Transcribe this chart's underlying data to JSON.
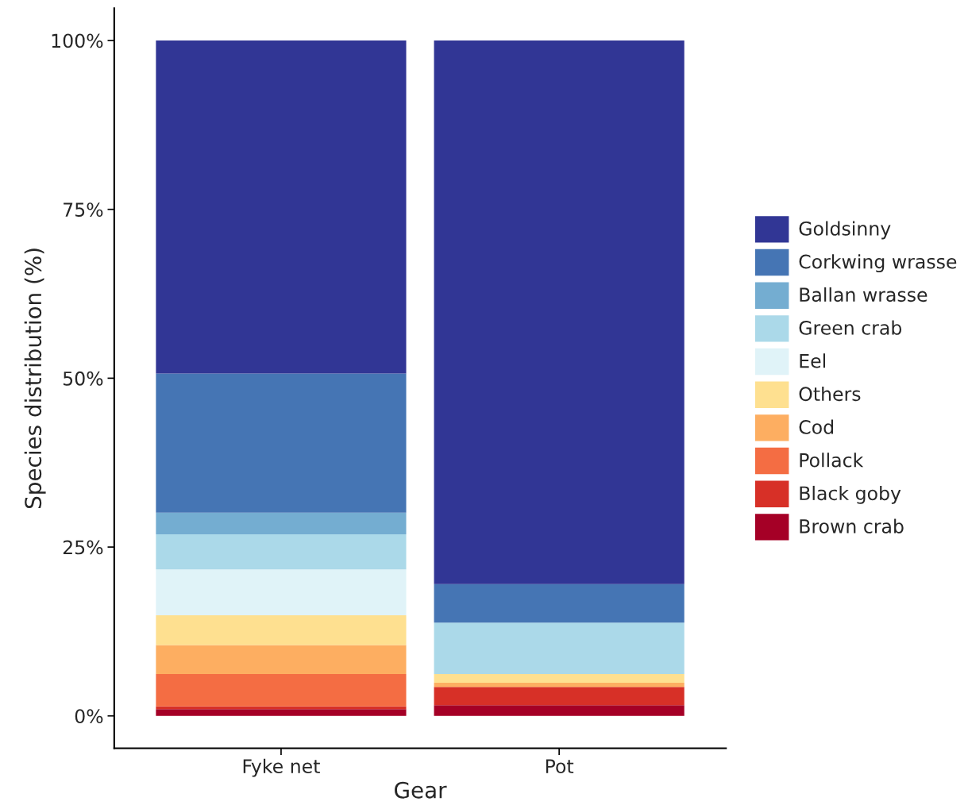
{
  "chart_data": {
    "type": "bar",
    "stacked": true,
    "xlabel": "Gear",
    "ylabel": "Species distribution (%)",
    "categories": [
      "Fyke net",
      "Pot"
    ],
    "series": [
      {
        "name": "Brown crab",
        "color": "#a50026",
        "values": [
          1.0,
          1.6
        ]
      },
      {
        "name": "Black goby",
        "color": "#d73027",
        "values": [
          0.4,
          2.7
        ]
      },
      {
        "name": "Pollack",
        "color": "#f46d43",
        "values": [
          4.8,
          0
        ]
      },
      {
        "name": "Cod",
        "color": "#fdae61",
        "values": [
          4.3,
          0.6
        ]
      },
      {
        "name": "Others",
        "color": "#fee090",
        "values": [
          4.4,
          1.3
        ]
      },
      {
        "name": "Eel",
        "color": "#e0f3f8",
        "values": [
          6.8,
          0
        ]
      },
      {
        "name": "Green crab",
        "color": "#abd9e9",
        "values": [
          5.2,
          7.6
        ]
      },
      {
        "name": "Ballan wrasse",
        "color": "#74add1",
        "values": [
          3.2,
          0
        ]
      },
      {
        "name": "Corkwing wrasse",
        "color": "#4575b4",
        "values": [
          20.6,
          5.7
        ]
      },
      {
        "name": "Goldsinny",
        "color": "#313695",
        "values": [
          49.3,
          80.5
        ]
      }
    ],
    "ylim": [
      -4.8,
      104.8
    ],
    "yticks": [
      {
        "value": 0,
        "label": "0%"
      },
      {
        "value": 25,
        "label": "25%"
      },
      {
        "value": 50,
        "label": "50%"
      },
      {
        "value": 75,
        "label": "75%"
      },
      {
        "value": 100,
        "label": "100%"
      }
    ],
    "grid": false,
    "legend": "right"
  }
}
